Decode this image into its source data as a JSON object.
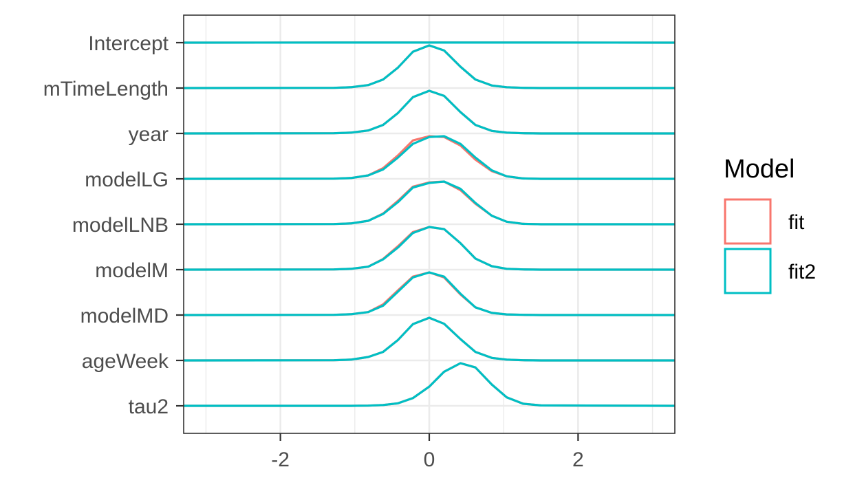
{
  "chart_data": {
    "type": "ridgeline",
    "xlim": [
      -3.3,
      3.3
    ],
    "x_ticks": [
      -2,
      0,
      2
    ],
    "x_tick_labels": [
      "-2",
      "0",
      "2"
    ],
    "grid": true,
    "categories": [
      "Intercept",
      "mTimeLength",
      "year",
      "modelLG",
      "modelLNB",
      "modelM",
      "modelMD",
      "ageWeek",
      "tau2"
    ],
    "x": [
      -3.3,
      -1.28,
      -1.05,
      -0.82,
      -0.62,
      -0.42,
      -0.22,
      0.0,
      0.2,
      0.42,
      0.62,
      0.84,
      1.04,
      1.26,
      1.5,
      3.3
    ],
    "series": [
      {
        "name": "fit",
        "color": "#f8766d",
        "densities": {
          "Intercept": [
            0,
            0.001,
            0.001,
            0.001,
            0.001,
            0.001,
            0.002,
            0.002,
            0.002,
            0.002,
            0.002,
            0.001,
            0.001,
            0.001,
            0.001,
            0
          ],
          "mTimeLength": [
            0,
            0.005,
            0.02,
            0.07,
            0.2,
            0.48,
            0.85,
            1.0,
            0.88,
            0.5,
            0.2,
            0.06,
            0.02,
            0.005,
            0,
            0
          ],
          "year": [
            0,
            0.005,
            0.02,
            0.07,
            0.2,
            0.48,
            0.85,
            1.0,
            0.88,
            0.5,
            0.2,
            0.06,
            0.02,
            0.005,
            0,
            0
          ],
          "modelLG": [
            0,
            0.005,
            0.02,
            0.08,
            0.25,
            0.55,
            0.9,
            1.0,
            0.98,
            0.78,
            0.45,
            0.18,
            0.06,
            0.01,
            0,
            0
          ],
          "modelLNB": [
            0,
            0.005,
            0.02,
            0.08,
            0.25,
            0.55,
            0.88,
            0.98,
            1.0,
            0.8,
            0.48,
            0.2,
            0.06,
            0.01,
            0,
            0
          ],
          "modelM": [
            0,
            0.005,
            0.02,
            0.07,
            0.25,
            0.55,
            0.88,
            1.0,
            0.95,
            0.62,
            0.26,
            0.08,
            0.02,
            0.005,
            0,
            0
          ],
          "modelMD": [
            0,
            0.005,
            0.02,
            0.07,
            0.25,
            0.58,
            0.9,
            1.0,
            0.88,
            0.48,
            0.18,
            0.05,
            0.015,
            0.005,
            0,
            0
          ],
          "ageWeek": [
            0,
            0.005,
            0.02,
            0.08,
            0.2,
            0.48,
            0.85,
            1.0,
            0.86,
            0.5,
            0.2,
            0.06,
            0.02,
            0.005,
            0,
            0
          ],
          "tau2": [
            0,
            0,
            0,
            0.005,
            0.02,
            0.06,
            0.18,
            0.45,
            0.8,
            1.0,
            0.9,
            0.5,
            0.2,
            0.05,
            0.01,
            0
          ]
        }
      },
      {
        "name": "fit2",
        "color": "#00bfc4",
        "densities": {
          "Intercept": [
            0,
            0.001,
            0.001,
            0.001,
            0.001,
            0.001,
            0.002,
            0.002,
            0.002,
            0.002,
            0.002,
            0.001,
            0.001,
            0.001,
            0.001,
            0
          ],
          "mTimeLength": [
            0,
            0.005,
            0.02,
            0.07,
            0.2,
            0.48,
            0.85,
            1.0,
            0.88,
            0.5,
            0.2,
            0.06,
            0.02,
            0.005,
            0,
            0
          ],
          "year": [
            0,
            0.005,
            0.02,
            0.07,
            0.2,
            0.48,
            0.85,
            1.0,
            0.88,
            0.5,
            0.2,
            0.06,
            0.02,
            0.005,
            0,
            0
          ],
          "modelLG": [
            0,
            0.005,
            0.02,
            0.08,
            0.22,
            0.5,
            0.82,
            0.98,
            1.0,
            0.82,
            0.5,
            0.2,
            0.06,
            0.01,
            0,
            0
          ],
          "modelLNB": [
            0,
            0.005,
            0.02,
            0.08,
            0.24,
            0.52,
            0.86,
            0.97,
            1.0,
            0.83,
            0.5,
            0.2,
            0.06,
            0.01,
            0,
            0
          ],
          "modelM": [
            0,
            0.005,
            0.02,
            0.07,
            0.24,
            0.52,
            0.86,
            1.0,
            0.95,
            0.62,
            0.26,
            0.08,
            0.02,
            0.005,
            0,
            0
          ],
          "modelMD": [
            0,
            0.005,
            0.02,
            0.07,
            0.22,
            0.55,
            0.88,
            1.0,
            0.9,
            0.5,
            0.18,
            0.05,
            0.015,
            0.005,
            0,
            0
          ],
          "ageWeek": [
            0,
            0.005,
            0.02,
            0.08,
            0.2,
            0.48,
            0.85,
            1.0,
            0.86,
            0.5,
            0.2,
            0.06,
            0.02,
            0.005,
            0,
            0
          ],
          "tau2": [
            0,
            0,
            0,
            0.005,
            0.02,
            0.06,
            0.18,
            0.45,
            0.8,
            1.0,
            0.9,
            0.5,
            0.2,
            0.05,
            0.01,
            0
          ]
        }
      }
    ],
    "legend": {
      "title": "Model",
      "position": "right",
      "entries": [
        {
          "label": "fit",
          "color": "#f8766d"
        },
        {
          "label": "fit2",
          "color": "#00bfc4"
        }
      ]
    }
  }
}
